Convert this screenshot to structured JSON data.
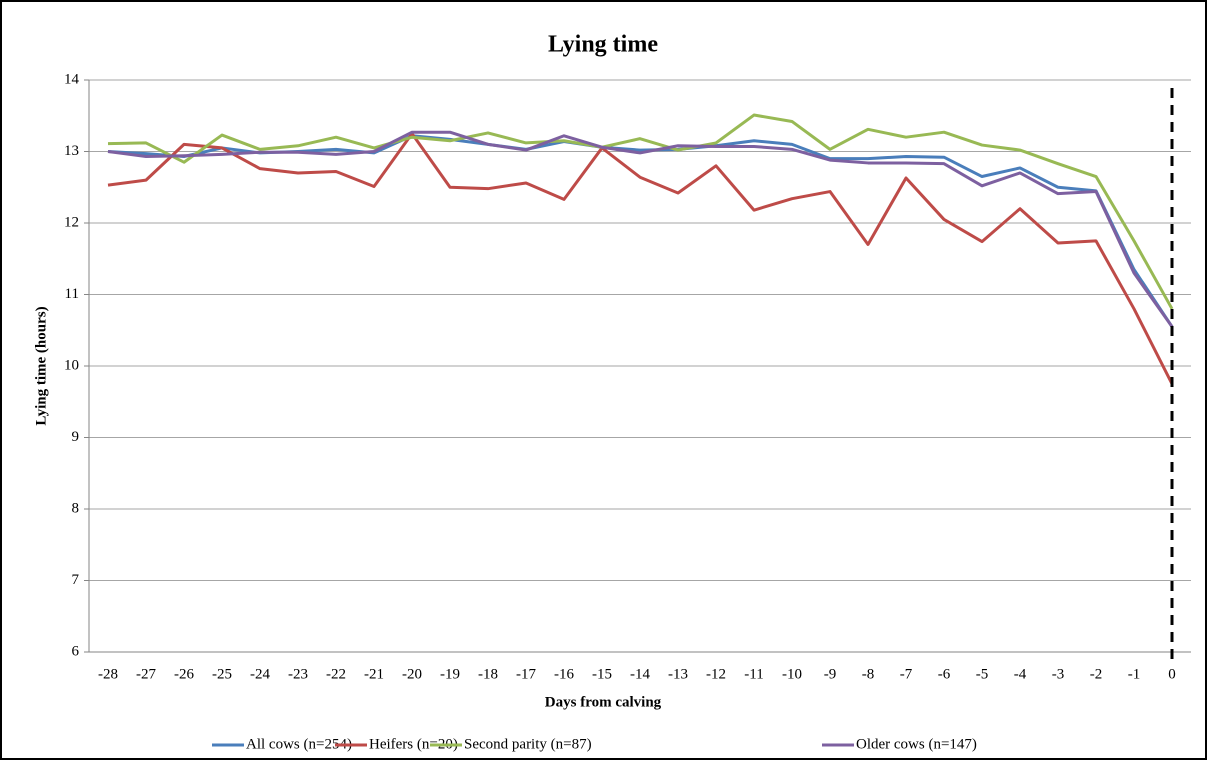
{
  "chart_data": {
    "type": "line",
    "title": "Lying time",
    "x_label": "Days from calving",
    "y_label": "Lying time (hours)",
    "categories": [
      -28,
      -27,
      -26,
      -25,
      -24,
      -23,
      -22,
      -21,
      -20,
      -19,
      -18,
      -17,
      -16,
      -15,
      -14,
      -13,
      -12,
      -11,
      -10,
      -9,
      -8,
      -7,
      -6,
      -5,
      -4,
      -3,
      -2,
      -1,
      0
    ],
    "series": [
      {
        "name": "All cows (n=254)",
        "color": "#4a7ebb",
        "values": [
          13.0,
          12.97,
          12.93,
          13.05,
          12.98,
          13.0,
          13.03,
          12.98,
          13.22,
          13.17,
          13.1,
          13.03,
          13.14,
          13.06,
          13.02,
          13.03,
          13.08,
          13.15,
          13.1,
          12.9,
          12.9,
          12.93,
          12.92,
          12.65,
          12.77,
          12.5,
          12.45,
          11.35,
          10.55
        ]
      },
      {
        "name": "Heifers (n=20)",
        "color": "#be4b48",
        "values": [
          12.53,
          12.6,
          13.1,
          13.05,
          12.76,
          12.7,
          12.72,
          12.51,
          13.25,
          12.5,
          12.48,
          12.56,
          12.33,
          13.05,
          12.64,
          12.42,
          12.8,
          12.18,
          12.34,
          12.44,
          11.7,
          12.63,
          12.05,
          11.74,
          12.2,
          11.72,
          11.75,
          10.8,
          9.75
        ]
      },
      {
        "name": "Second parity (n=87)",
        "color": "#98b954",
        "values": [
          13.11,
          13.12,
          12.85,
          13.23,
          13.03,
          13.08,
          13.2,
          13.05,
          13.2,
          13.15,
          13.26,
          13.12,
          13.15,
          13.06,
          13.18,
          13.02,
          13.12,
          13.51,
          13.42,
          13.03,
          13.31,
          13.2,
          13.27,
          13.09,
          13.02,
          12.83,
          12.65,
          11.75,
          10.8
        ]
      },
      {
        "name": "Older cows (n=147)",
        "color": "#7d60a0",
        "values": [
          13.0,
          12.93,
          12.94,
          12.96,
          12.99,
          12.99,
          12.96,
          13.0,
          13.27,
          13.27,
          13.1,
          13.02,
          13.22,
          13.06,
          12.98,
          13.08,
          13.07,
          13.07,
          13.03,
          12.88,
          12.84,
          12.84,
          12.83,
          12.52,
          12.7,
          12.41,
          12.44,
          11.3,
          10.55
        ]
      }
    ],
    "ylim": [
      6,
      14
    ],
    "yticks": [
      6,
      7,
      8,
      9,
      10,
      11,
      12,
      13,
      14
    ],
    "grid": true,
    "reference_line": {
      "category": 0,
      "style": "dashed",
      "color": "#000000"
    },
    "legend": "bottom"
  }
}
